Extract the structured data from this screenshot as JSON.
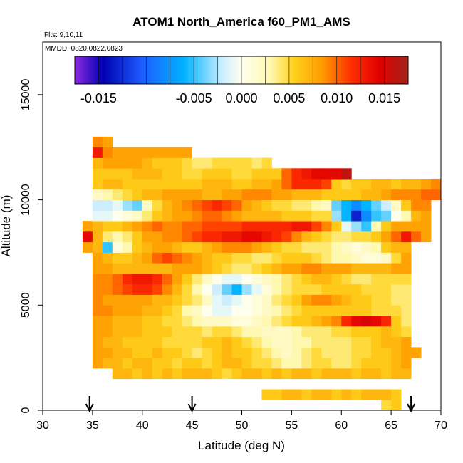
{
  "chart_data": {
    "type": "heatmap",
    "title": "ATOM1 North_America f60_PM1_AMS",
    "flights_label": "Flts: 9,10,11",
    "dates_label": "MMDD: 0820,0822,0823",
    "xlabel": "Latitude (deg N)",
    "ylabel": "Altitude (m)",
    "xlim": [
      30,
      70
    ],
    "ylim": [
      0,
      17500
    ],
    "x_ticks": [
      "30",
      "35",
      "40",
      "45",
      "50",
      "55",
      "60",
      "65",
      "70"
    ],
    "y_ticks": [
      "0",
      "5000",
      "10000",
      "15000"
    ],
    "colorbar": {
      "range": [
        -0.0175,
        0.0175
      ],
      "tick_labels": [
        "-0.015",
        "-0.005",
        "0.000",
        "0.005",
        "0.010",
        "0.015"
      ],
      "tick_values": [
        -0.015,
        -0.005,
        0.0,
        0.005,
        0.01,
        0.015
      ],
      "stops": [
        {
          "v": -0.0175,
          "c": "#8a2be2"
        },
        {
          "v": -0.0145,
          "c": "#0000b0"
        },
        {
          "v": -0.0105,
          "c": "#1e5bff"
        },
        {
          "v": -0.006,
          "c": "#00b4ff"
        },
        {
          "v": -0.002,
          "c": "#cceeff"
        },
        {
          "v": 0.0,
          "c": "#ffffee"
        },
        {
          "v": 0.003,
          "c": "#fff8b0"
        },
        {
          "v": 0.0055,
          "c": "#ffd21c"
        },
        {
          "v": 0.0085,
          "c": "#ff9a00"
        },
        {
          "v": 0.0115,
          "c": "#ff3000"
        },
        {
          "v": 0.0145,
          "c": "#e00000"
        },
        {
          "v": 0.0175,
          "c": "#a0241c"
        }
      ]
    },
    "arrow_latitudes": [
      34.7,
      45.0,
      67.0
    ],
    "lat_bin_width": 1,
    "alt_bin_height": 500,
    "grid_rows": [
      {
        "alt": 250,
        "lat_start": 64,
        "values": [
          0.005,
          0.006
        ]
      },
      {
        "alt": 750,
        "lat_start": 52,
        "values": [
          0.006,
          0.006,
          0.007,
          0.007,
          0.006,
          0.007,
          0.007,
          0.006,
          0.007,
          0.006,
          0.007,
          0.007,
          0.007,
          0.006
        ]
      },
      {
        "alt": 1750,
        "lat_start": 37,
        "values": [
          0.007,
          0.007,
          0.006,
          0.007,
          0.006,
          0.007,
          0.006,
          0.007,
          0.007,
          0.007,
          0.006,
          0.005,
          0.006,
          0.007,
          0.007,
          0.006,
          0.007,
          0.006,
          0.007,
          0.007,
          0.006,
          0.007,
          0.007,
          0.007,
          0.006,
          0.007,
          0.007,
          0.006,
          0.007,
          0.007
        ]
      },
      {
        "alt": 2250,
        "lat_start": 35,
        "values": [
          0.008,
          0.007,
          0.007,
          0.006,
          0.007,
          0.007,
          0.006,
          0.006,
          0.005,
          0.006,
          0.006,
          0.005,
          0.006,
          0.007,
          0.007,
          0.006,
          0.005,
          0.005,
          0.004,
          0.003,
          0.003,
          0.004,
          0.005,
          0.005,
          0.004,
          0.004,
          0.005,
          0.006,
          0.006,
          0.006,
          0.007,
          0.008
        ]
      },
      {
        "alt": 2750,
        "lat_start": 35,
        "values": [
          0.008,
          0.008,
          0.007,
          0.007,
          0.006,
          0.006,
          0.007,
          0.006,
          0.006,
          0.005,
          0.004,
          0.005,
          0.006,
          0.007,
          0.006,
          0.006,
          0.005,
          0.004,
          0.003,
          0.002,
          0.003,
          0.004,
          0.005,
          0.004,
          0.004,
          0.004,
          0.005,
          0.005,
          0.006,
          0.006,
          0.007,
          0.008,
          0.008
        ]
      },
      {
        "alt": 3250,
        "lat_start": 35,
        "values": [
          0.008,
          0.007,
          0.007,
          0.006,
          0.006,
          0.006,
          0.006,
          0.005,
          0.005,
          0.005,
          0.005,
          0.006,
          0.006,
          0.007,
          0.006,
          0.005,
          0.004,
          0.003,
          0.002,
          0.002,
          0.003,
          0.003,
          0.004,
          0.004,
          0.004,
          0.004,
          0.005,
          0.005,
          0.006,
          0.007,
          0.007,
          0.008
        ]
      },
      {
        "alt": 3750,
        "lat_start": 35,
        "values": [
          0.008,
          0.008,
          0.007,
          0.007,
          0.007,
          0.006,
          0.006,
          0.006,
          0.005,
          0.005,
          0.005,
          0.004,
          0.005,
          0.005,
          0.004,
          0.003,
          0.003,
          0.002,
          0.002,
          0.002,
          0.003,
          0.004,
          0.004,
          0.004,
          0.005,
          0.005,
          0.006,
          0.006,
          0.006,
          0.007,
          0.006,
          0.005
        ]
      },
      {
        "alt": 4250,
        "lat_start": 35,
        "values": [
          0.008,
          0.008,
          0.007,
          0.007,
          0.007,
          0.006,
          0.006,
          0.005,
          0.005,
          0.004,
          0.003,
          0.002,
          0.002,
          0.002,
          0.001,
          0.001,
          0.002,
          0.003,
          0.004,
          0.005,
          0.006,
          0.006,
          0.007,
          0.008,
          0.009,
          0.012,
          0.014,
          0.015,
          0.014,
          0.012,
          0.006,
          0.004
        ]
      },
      {
        "alt": 4750,
        "lat_start": 35,
        "values": [
          0.009,
          0.009,
          0.008,
          0.008,
          0.008,
          0.007,
          0.007,
          0.006,
          0.005,
          0.003,
          0.002,
          0.0,
          -0.001,
          -0.001,
          0.0,
          0.0,
          0.001,
          0.002,
          0.003,
          0.004,
          0.005,
          0.006,
          0.006,
          0.006,
          0.006,
          0.006,
          0.006,
          0.006,
          0.005,
          0.005,
          0.005,
          0.004
        ]
      },
      {
        "alt": 5250,
        "lat_start": 35,
        "values": [
          0.009,
          0.008,
          0.008,
          0.008,
          0.008,
          0.008,
          0.007,
          0.007,
          0.006,
          0.005,
          0.004,
          0.002,
          -0.001,
          -0.002,
          -0.001,
          0.0,
          0.001,
          0.002,
          0.004,
          0.005,
          0.006,
          0.008,
          0.009,
          0.009,
          0.008,
          0.007,
          0.006,
          0.006,
          0.005,
          0.005,
          0.004,
          0.004
        ]
      },
      {
        "alt": 5750,
        "lat_start": 35,
        "values": [
          0.009,
          0.009,
          0.01,
          0.011,
          0.012,
          0.012,
          0.011,
          0.009,
          0.007,
          0.005,
          0.003,
          0.0,
          -0.002,
          -0.004,
          -0.006,
          -0.003,
          -0.001,
          0.001,
          0.003,
          0.004,
          0.005,
          0.005,
          0.005,
          0.006,
          0.006,
          0.006,
          0.006,
          0.005,
          0.005,
          0.005,
          0.004,
          0.004
        ]
      },
      {
        "alt": 6250,
        "lat_start": 35,
        "values": [
          0.009,
          0.009,
          0.01,
          0.012,
          0.013,
          0.013,
          0.012,
          0.01,
          0.008,
          0.006,
          0.004,
          0.002,
          0.0,
          -0.001,
          -0.001,
          0.0,
          0.001,
          0.002,
          0.003,
          0.004,
          0.005,
          0.006,
          0.007,
          0.007,
          0.006,
          0.005,
          0.004,
          0.004,
          0.005,
          0.005,
          0.005,
          0.005
        ]
      },
      {
        "alt": 6750,
        "lat_start": 35,
        "values": [
          0.008,
          0.008,
          0.007,
          0.007,
          0.007,
          0.007,
          0.007,
          0.007,
          0.008,
          0.008,
          0.008,
          0.007,
          0.006,
          0.005,
          0.004,
          0.004,
          0.005,
          0.006,
          0.007,
          0.008,
          0.008,
          0.009,
          0.009,
          0.008,
          0.008,
          0.008,
          0.007,
          0.007,
          0.007,
          0.007,
          0.008,
          0.008
        ]
      },
      {
        "alt": 7250,
        "lat_start": 35,
        "values": [
          0.008,
          0.007,
          0.006,
          0.006,
          0.007,
          0.008,
          0.01,
          0.011,
          0.01,
          0.009,
          0.008,
          0.007,
          0.006,
          0.006,
          0.005,
          0.005,
          0.004,
          0.004,
          0.005,
          0.006,
          0.006,
          0.006,
          0.005,
          0.004,
          0.003,
          0.003,
          0.002,
          0.001,
          0.001,
          0.002,
          0.005,
          0.008
        ]
      },
      {
        "alt": 7750,
        "lat_start": 34,
        "values": [
          0.008,
          0.007,
          -0.005,
          0.001,
          0.003,
          0.006,
          0.007,
          0.008,
          0.008,
          0.007,
          0.006,
          0.006,
          0.007,
          0.008,
          0.009,
          0.009,
          0.009,
          0.008,
          0.007,
          0.006,
          0.005,
          0.005,
          0.004,
          0.004,
          0.004,
          0.003,
          0.002,
          0.001,
          0.002,
          0.003,
          0.006,
          0.007,
          0.007
        ]
      },
      {
        "alt": 8250,
        "lat_start": 34,
        "values": [
          0.014,
          0.007,
          0.004,
          0.003,
          0.004,
          0.006,
          0.008,
          0.008,
          0.009,
          0.009,
          0.01,
          0.011,
          0.012,
          0.012,
          0.013,
          0.013,
          0.014,
          0.014,
          0.013,
          0.012,
          0.011,
          0.009,
          0.007,
          0.006,
          0.005,
          0.004,
          0.004,
          0.005,
          0.005,
          0.006,
          0.008,
          0.01,
          0.013,
          0.01,
          0.008
        ]
      },
      {
        "alt": 8750,
        "lat_start": 34,
        "values": [
          0.008,
          0.007,
          0.006,
          0.006,
          0.007,
          0.008,
          0.009,
          0.01,
          0.009,
          0.009,
          0.01,
          0.01,
          0.011,
          0.011,
          0.011,
          0.011,
          0.012,
          0.012,
          0.012,
          0.012,
          0.012,
          0.013,
          0.013,
          0.011,
          0.009,
          0.006,
          -0.001,
          -0.003,
          -0.005,
          0.003,
          0.006,
          0.008,
          0.008,
          0.008,
          0.008
        ]
      },
      {
        "alt": 9250,
        "lat_start": 35,
        "values": [
          -0.001,
          -0.001,
          0.0,
          0.001,
          0.002,
          0.004,
          0.006,
          0.007,
          0.008,
          0.008,
          0.009,
          0.01,
          0.01,
          0.009,
          0.008,
          0.007,
          0.007,
          0.007,
          0.007,
          0.006,
          0.006,
          0.006,
          0.005,
          0.005,
          -0.003,
          -0.006,
          -0.013,
          -0.008,
          -0.005,
          -0.004,
          0.0,
          0.003,
          0.007,
          0.008
        ]
      },
      {
        "alt": 9750,
        "lat_start": 35,
        "values": [
          -0.002,
          -0.002,
          -0.001,
          -0.003,
          -0.004,
          0.002,
          0.005,
          0.007,
          0.008,
          0.009,
          0.01,
          0.011,
          0.012,
          0.011,
          0.01,
          0.008,
          0.007,
          0.006,
          0.005,
          0.005,
          0.004,
          0.004,
          0.003,
          0.002,
          -0.004,
          -0.006,
          -0.008,
          -0.006,
          -0.004,
          -0.002,
          0.002,
          0.006,
          0.009,
          0.009
        ]
      },
      {
        "alt": 10250,
        "lat_start": 35,
        "values": [
          0.002,
          0.003,
          0.004,
          0.005,
          0.006,
          0.007,
          0.007,
          0.008,
          0.008,
          0.008,
          0.008,
          0.007,
          0.007,
          0.008,
          0.008,
          0.009,
          0.009,
          0.009,
          0.008,
          0.008,
          0.007,
          0.007,
          0.007,
          0.006,
          0.006,
          0.006,
          0.006,
          0.007,
          0.007,
          0.008,
          0.009,
          0.009,
          0.009,
          0.01,
          0.01
        ]
      },
      {
        "alt": 10750,
        "lat_start": 35,
        "values": [
          0.006,
          0.007,
          0.007,
          0.006,
          0.006,
          0.006,
          0.006,
          0.006,
          0.006,
          0.006,
          0.006,
          0.007,
          0.007,
          0.007,
          0.006,
          0.006,
          0.007,
          0.007,
          0.008,
          0.01,
          0.012,
          0.012,
          0.012,
          0.011,
          0.006,
          0.005,
          0.006,
          0.006,
          0.007,
          0.007,
          0.006,
          0.007,
          0.007,
          0.008,
          0.009
        ]
      },
      {
        "alt": 11250,
        "lat_start": 35,
        "values": [
          0.006,
          0.006,
          0.006,
          0.006,
          0.007,
          0.007,
          0.007,
          0.006,
          0.006,
          0.005,
          0.005,
          0.006,
          0.006,
          0.006,
          0.005,
          0.005,
          0.006,
          0.006,
          0.006,
          0.01,
          0.012,
          0.013,
          0.014,
          0.014,
          0.014,
          0.016
        ]
      },
      {
        "alt": 11750,
        "lat_start": 35,
        "values": [
          0.007,
          0.008,
          0.008,
          0.008,
          0.008,
          0.007,
          0.006,
          0.006,
          0.006,
          0.005,
          0.004,
          0.004,
          0.005,
          0.005,
          0.005,
          0.005,
          0.004,
          0.005
        ]
      },
      {
        "alt": 12250,
        "lat_start": 35,
        "values": [
          0.013,
          0.009,
          0.008,
          0.008,
          0.008,
          0.008,
          0.008,
          0.008,
          0.008,
          0.008
        ]
      },
      {
        "alt": 12750,
        "lat_start": 35,
        "values": [
          0.009,
          0.008
        ]
      }
    ]
  }
}
